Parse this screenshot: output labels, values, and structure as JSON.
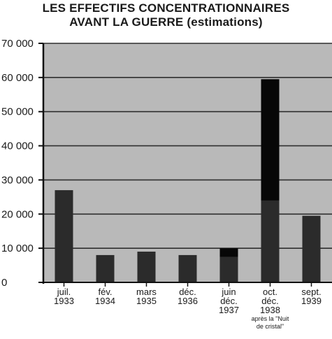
{
  "chart_data": {
    "type": "bar",
    "title_lines": [
      "LES EFFECTIFS CONCENTRATIONNAIRES",
      "AVANT LA GUERRE (estimations)"
    ],
    "categories": [
      [
        "juil.",
        "1933"
      ],
      [
        "fév.",
        "1934"
      ],
      [
        "mars",
        "1935"
      ],
      [
        "déc.",
        "1936"
      ],
      [
        "juin",
        "déc.",
        "1937"
      ],
      [
        "oct.",
        "déc.",
        "1938"
      ],
      [
        "sept.",
        "1939"
      ]
    ],
    "annotation": [
      "après la \"Nuit",
      "de cristal\""
    ],
    "annotation_category_index": 5,
    "series": [
      {
        "values": [
          27000,
          8000,
          9000,
          8000,
          7500,
          24000,
          19500
        ]
      },
      {
        "values": [
          0,
          0,
          0,
          0,
          10000,
          59500,
          0
        ]
      }
    ],
    "y_ticks": [
      "0",
      "10 000",
      "20 000",
      "30 000",
      "40 000",
      "50 000",
      "60 000",
      "70 000"
    ],
    "ylim": [
      0,
      70000
    ],
    "grid": true,
    "colors": {
      "plot_background": "#b9b9b9",
      "gridline": "#2f2f2f",
      "bar_base": "#2b2b2b",
      "bar_peak": "#070707",
      "axis": "#111111"
    }
  }
}
